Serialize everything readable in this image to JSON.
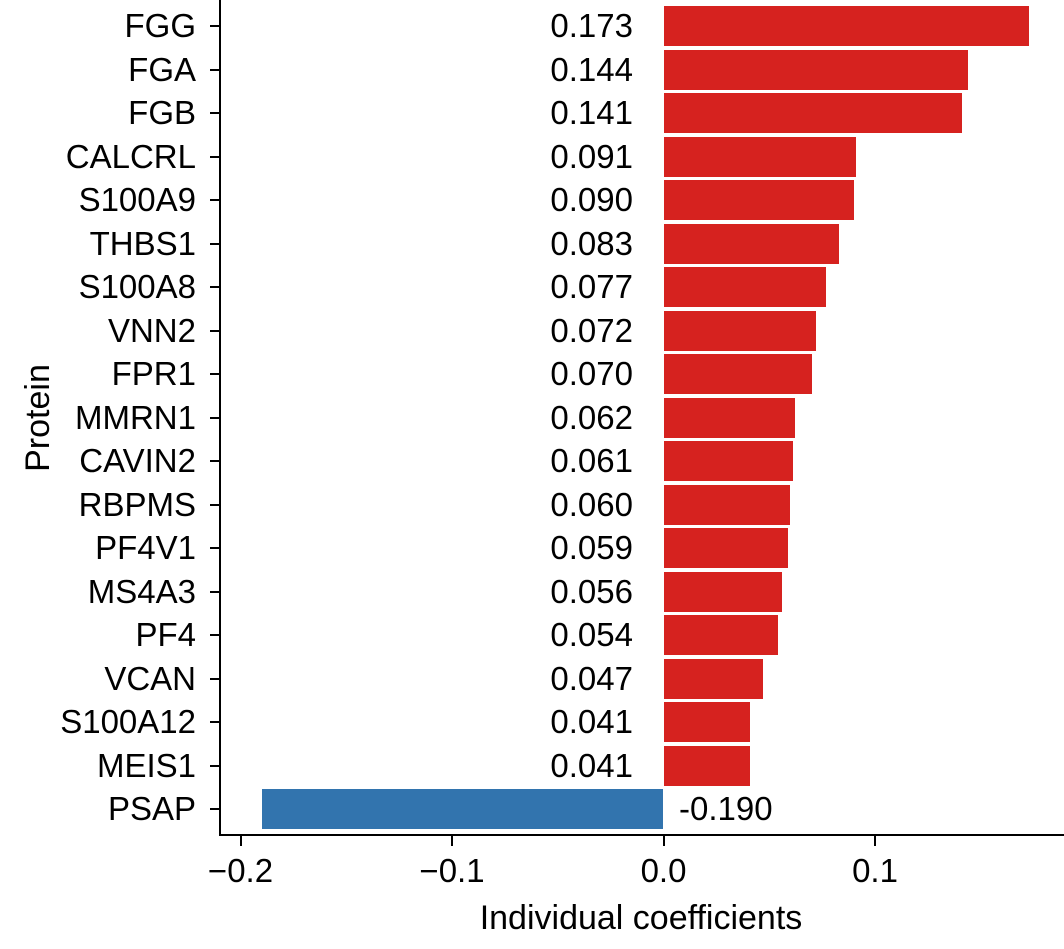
{
  "figure": {
    "background": "#ffffff"
  },
  "chart_data": {
    "type": "bar",
    "orientation": "horizontal",
    "title": "",
    "xlabel": "Individual coefficients",
    "ylabel": "Protein",
    "xlim": [
      -0.2097,
      0.1884
    ],
    "grid": false,
    "legend": "none",
    "x_ticks": [
      {
        "value": -0.2,
        "label": "−0.2"
      },
      {
        "value": -0.1,
        "label": "−0.1"
      },
      {
        "value": 0.0,
        "label": "0.0"
      },
      {
        "value": 0.1,
        "label": "0.1"
      }
    ],
    "bars": [
      {
        "protein": "FGG",
        "value": 0.173,
        "label": "0.173"
      },
      {
        "protein": "FGA",
        "value": 0.144,
        "label": "0.144"
      },
      {
        "protein": "FGB",
        "value": 0.141,
        "label": "0.141"
      },
      {
        "protein": "CALCRL",
        "value": 0.091,
        "label": "0.091"
      },
      {
        "protein": "S100A9",
        "value": 0.09,
        "label": "0.090"
      },
      {
        "protein": "THBS1",
        "value": 0.083,
        "label": "0.083"
      },
      {
        "protein": "S100A8",
        "value": 0.077,
        "label": "0.077"
      },
      {
        "protein": "VNN2",
        "value": 0.072,
        "label": "0.072"
      },
      {
        "protein": "FPR1",
        "value": 0.07,
        "label": "0.070"
      },
      {
        "protein": "MMRN1",
        "value": 0.062,
        "label": "0.062"
      },
      {
        "protein": "CAVIN2",
        "value": 0.061,
        "label": "0.061"
      },
      {
        "protein": "RBPMS",
        "value": 0.06,
        "label": "0.060"
      },
      {
        "protein": "PF4V1",
        "value": 0.059,
        "label": "0.059"
      },
      {
        "protein": "MS4A3",
        "value": 0.056,
        "label": "0.056"
      },
      {
        "protein": "PF4",
        "value": 0.054,
        "label": "0.054"
      },
      {
        "protein": "VCAN",
        "value": 0.047,
        "label": "0.047"
      },
      {
        "protein": "S100A12",
        "value": 0.041,
        "label": "0.041"
      },
      {
        "protein": "MEIS1",
        "value": 0.041,
        "label": "0.041"
      },
      {
        "protein": "PSAP",
        "value": -0.19,
        "label": "-0.190"
      }
    ],
    "colors": {
      "positive": "#d6221f",
      "negative": "#3274ae",
      "axis": "#000000",
      "text": "#000000"
    }
  }
}
